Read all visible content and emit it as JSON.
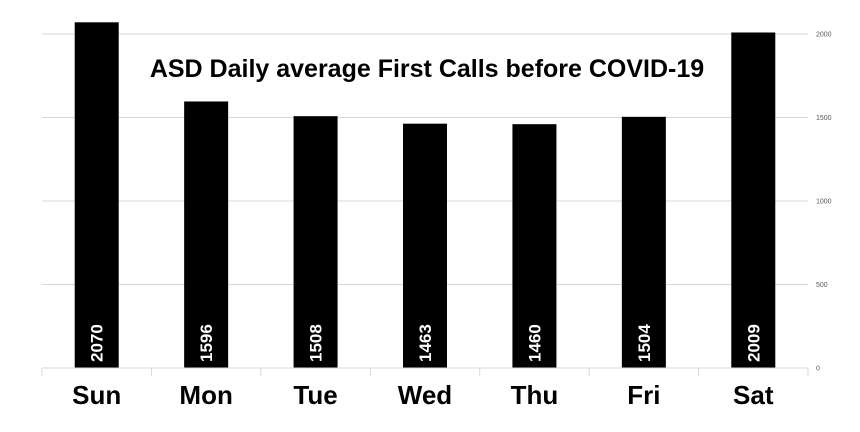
{
  "chart_data": {
    "type": "bar",
    "title": "ASD Daily average First Calls before COVID-19",
    "categories": [
      "Sun",
      "Mon",
      "Tue",
      "Wed",
      "Thu",
      "Fri",
      "Sat"
    ],
    "values": [
      2070,
      1596,
      1508,
      1463,
      1460,
      1504,
      2009
    ],
    "data_labels": [
      "2070",
      "1596",
      "1508",
      "1463",
      "1460",
      "1504",
      "2009"
    ],
    "y_ticks": [
      "0",
      "500",
      "1000",
      "1500",
      "2000"
    ],
    "y_tick_values": [
      0,
      500,
      1000,
      1500,
      2000
    ],
    "ylim": [
      0,
      2000
    ],
    "y_axis_position": "right",
    "grid": true,
    "bar_color": "#000000",
    "label_color": "#ffffff",
    "xlabel": "",
    "ylabel": ""
  }
}
